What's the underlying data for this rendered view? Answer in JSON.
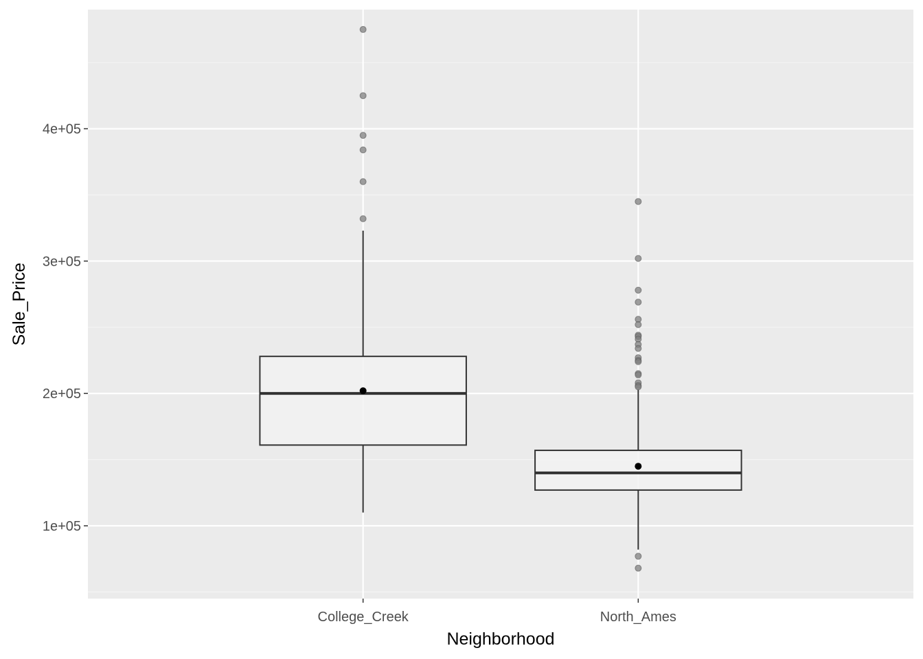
{
  "chart_data": {
    "type": "boxplot",
    "xlabel": "Neighborhood",
    "ylabel": "Sale_Price",
    "categories": [
      "College_Creek",
      "North_Ames"
    ],
    "y_ticks": [
      {
        "value": 100000,
        "label": "1e+05"
      },
      {
        "value": 200000,
        "label": "2e+05"
      },
      {
        "value": 300000,
        "label": "3e+05"
      },
      {
        "value": 400000,
        "label": "4e+05"
      }
    ],
    "ylim": [
      45000,
      490000
    ],
    "grid": true,
    "boxes": [
      {
        "category": "College_Creek",
        "whisker_low": 110000,
        "q1": 161000,
        "median": 200000,
        "q3": 228000,
        "whisker_high": 323000,
        "mean": 202000,
        "outliers": [
          475000,
          425000,
          395000,
          384000,
          360000,
          332000
        ]
      },
      {
        "category": "North_Ames",
        "whisker_low": 82000,
        "q1": 127000,
        "median": 140000,
        "q3": 157000,
        "whisker_high": 203000,
        "mean": 145000,
        "outliers": [
          345000,
          302000,
          278000,
          269000,
          256000,
          252000,
          244000,
          243000,
          241000,
          237000,
          234000,
          227000,
          225000,
          224000,
          215000,
          214000,
          208000,
          206000,
          205000,
          77000,
          68000
        ]
      }
    ]
  },
  "colors": {
    "panel": "#ebebeb",
    "grid_major": "#ffffff",
    "grid_minor": "#f5f5f5",
    "box_fill": "#f2f2f2",
    "box_line": "#333333",
    "outlier": "#7f7f7f",
    "mean_point": "#000000"
  }
}
